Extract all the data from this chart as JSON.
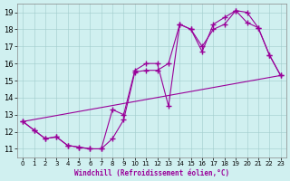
{
  "xlabel": "Windchill (Refroidissement éolien,°C)",
  "background_color": "#d0f0f0",
  "line_color": "#990099",
  "xlim": [
    -0.5,
    23.5
  ],
  "ylim": [
    10.5,
    19.5
  ],
  "xticks": [
    0,
    1,
    2,
    3,
    4,
    5,
    6,
    7,
    8,
    9,
    10,
    11,
    12,
    13,
    14,
    15,
    16,
    17,
    18,
    19,
    20,
    21,
    22,
    23
  ],
  "yticks": [
    11,
    12,
    13,
    14,
    15,
    16,
    17,
    18,
    19
  ],
  "line1_x": [
    0,
    1,
    2,
    3,
    4,
    5,
    6,
    7,
    8,
    9,
    10,
    11,
    12,
    13,
    14,
    15,
    16,
    17,
    18,
    19,
    20,
    21,
    22,
    23
  ],
  "line1_y": [
    12.6,
    12.1,
    11.6,
    11.7,
    11.2,
    11.1,
    11.0,
    11.0,
    13.3,
    13.0,
    15.6,
    16.0,
    16.0,
    13.5,
    18.3,
    18.0,
    16.7,
    18.3,
    18.7,
    19.1,
    18.4,
    18.1,
    16.5,
    15.3
  ],
  "line2_x": [
    0,
    1,
    2,
    3,
    4,
    5,
    6,
    7,
    8,
    9,
    10,
    11,
    12,
    13,
    14,
    15,
    16,
    17,
    18,
    19,
    20,
    21,
    22,
    23
  ],
  "line2_y": [
    12.6,
    12.1,
    11.6,
    11.7,
    11.2,
    11.1,
    11.0,
    11.0,
    11.6,
    12.7,
    15.5,
    15.6,
    15.6,
    16.0,
    18.3,
    18.0,
    17.0,
    18.0,
    18.3,
    19.1,
    19.0,
    18.1,
    16.5,
    15.3
  ],
  "line3_x": [
    0,
    23
  ],
  "line3_y": [
    12.6,
    15.3
  ]
}
